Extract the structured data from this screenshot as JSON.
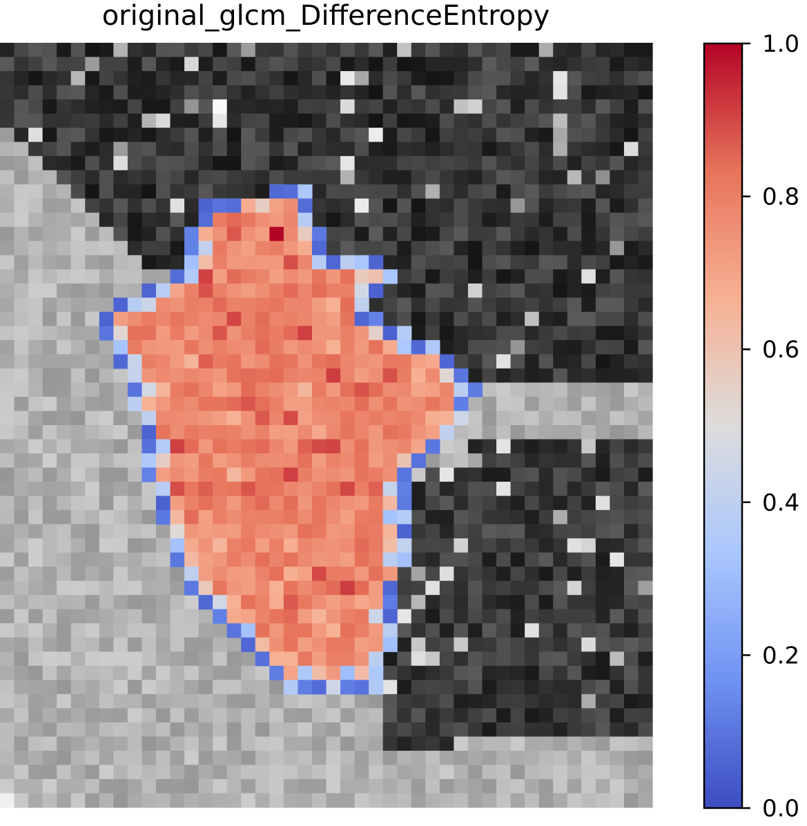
{
  "chart_data": {
    "type": "heatmap",
    "title": "original_glcm_DifferenceEntropy",
    "xlabel": "",
    "ylabel": "",
    "background": "grayscale CT image patch",
    "overlay": "feature map masked to lesion region",
    "grid": false,
    "legend": "colorbar-right",
    "colormap": "coolwarm",
    "colormap_stops": [
      "#3b4cc0",
      "#6f92f3",
      "#aac7fd",
      "#dddcdc",
      "#f7b093",
      "#e7745b",
      "#b40426"
    ],
    "colorbar": {
      "range": [
        0.0,
        1.0
      ],
      "ticks": [
        0.0,
        0.2,
        0.4,
        0.6,
        0.8,
        1.0
      ],
      "tick_labels": [
        "0.0",
        "0.2",
        "0.4",
        "0.6",
        "0.8",
        "1.0"
      ]
    },
    "overlay_value_summary": {
      "border": 0.05,
      "inner_edge": 0.3,
      "interior_typical": 0.78,
      "interior_peak": 1.0
    }
  }
}
